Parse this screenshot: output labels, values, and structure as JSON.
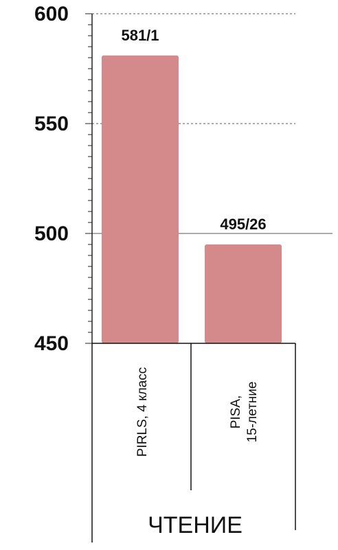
{
  "chart_data": {
    "type": "bar",
    "categories": [
      [
        "PIRLS, 4 класс"
      ],
      [
        "PISA,",
        "15-летние"
      ]
    ],
    "values": [
      581,
      495
    ],
    "data_labels": [
      "581/1",
      "495/26"
    ],
    "group_label": "ЧТЕНИЕ",
    "yticks": [
      600,
      550,
      500,
      450
    ],
    "ylim": [
      450,
      600
    ],
    "minor_tick_step": 5,
    "bar_color": "#d48a8a",
    "axis_color": "#222222",
    "grid": {
      "dashed_at": [
        600,
        550
      ],
      "solid_at": [
        500
      ]
    }
  }
}
